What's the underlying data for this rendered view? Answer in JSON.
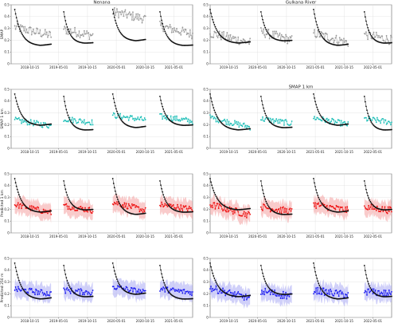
{
  "chart_data": [
    {
      "type": "scatter",
      "panel": "nenana-smap",
      "title": "Nenana",
      "ylabel": "SMAP",
      "ylim": [
        0,
        0.5
      ],
      "yticks": [
        "0",
        "0.1",
        "0.2",
        "0.3",
        "0.4",
        "0.5"
      ],
      "xticks": [
        "2018-10-15",
        "2019-05-01",
        "2019-10-15",
        "2020-05-01",
        "2020-10-15",
        "2021-05-01"
      ],
      "xlim": [
        0,
        100
      ],
      "model_color": "#9a9a9a",
      "band": false,
      "obs_segments": [
        {
          "x0": 2,
          "x1": 22
        },
        {
          "x0": 29,
          "x1": 45
        },
        {
          "x0": 56,
          "x1": 74
        },
        {
          "x0": 82,
          "x1": 100
        }
      ],
      "model_segments": [
        {
          "x0": 2,
          "x1": 22,
          "start": 0.31,
          "end": 0.24,
          "noise": 0.04
        },
        {
          "x0": 29,
          "x1": 45,
          "start": 0.29,
          "end": 0.24,
          "noise": 0.04
        },
        {
          "x0": 56,
          "x1": 74,
          "start": 0.44,
          "end": 0.38,
          "noise": 0.04
        },
        {
          "x0": 82,
          "x1": 100,
          "start": 0.32,
          "end": 0.25,
          "noise": 0.04
        }
      ]
    },
    {
      "type": "scatter",
      "panel": "gulkana-smap",
      "title": "Gulkana River",
      "ylabel": "",
      "ylim": [
        0,
        0.5
      ],
      "yticks": [
        "0",
        "0.1",
        "0.2",
        "0.3",
        "0.4",
        "0.5"
      ],
      "xticks": [
        "2019-10-15",
        "2020-05-01",
        "2020-10-15",
        "2021-05-01",
        "2021-10-15",
        "2022-05-01"
      ],
      "xlim": [
        0,
        100
      ],
      "model_color": "#9a9a9a",
      "band": false,
      "obs_segments": [
        {
          "x0": 0,
          "x1": 22
        },
        {
          "x0": 28,
          "x1": 45
        },
        {
          "x0": 57,
          "x1": 76
        },
        {
          "x0": 85,
          "x1": 100
        }
      ],
      "model_segments": [
        {
          "x0": 0,
          "x1": 22,
          "start": 0.26,
          "end": 0.18,
          "noise": 0.04
        },
        {
          "x0": 28,
          "x1": 45,
          "start": 0.27,
          "end": 0.2,
          "noise": 0.04
        },
        {
          "x0": 57,
          "x1": 76,
          "start": 0.26,
          "end": 0.18,
          "noise": 0.04
        },
        {
          "x0": 85,
          "x1": 100,
          "start": 0.25,
          "end": 0.2,
          "noise": 0.04
        }
      ]
    },
    {
      "type": "scatter",
      "panel": "nenana-smap1km",
      "title": "",
      "ylabel": "SMAP 1 km",
      "ylim": [
        0,
        0.5
      ],
      "yticks": [
        "0",
        "0.1",
        "0.2",
        "0.3",
        "0.4",
        "0.5"
      ],
      "xticks": [
        "2018-10-15",
        "2019-05-01",
        "2019-10-15",
        "2020-05-01",
        "2020-10-15",
        "2021-05-01"
      ],
      "xlim": [
        0,
        100
      ],
      "model_color": "#1fbfb8",
      "band": false,
      "obs_segments": [
        {
          "x0": 2,
          "x1": 22
        },
        {
          "x0": 29,
          "x1": 45
        },
        {
          "x0": 56,
          "x1": 74
        },
        {
          "x0": 82,
          "x1": 100
        }
      ],
      "model_segments": [
        {
          "x0": 2,
          "x1": 22,
          "start": 0.24,
          "end": 0.19,
          "noise": 0.025
        },
        {
          "x0": 29,
          "x1": 45,
          "start": 0.25,
          "end": 0.22,
          "noise": 0.025
        },
        {
          "x0": 56,
          "x1": 74,
          "start": 0.28,
          "end": 0.24,
          "noise": 0.025
        },
        {
          "x0": 82,
          "x1": 100,
          "start": 0.27,
          "end": 0.23,
          "noise": 0.025
        }
      ]
    },
    {
      "type": "scatter",
      "panel": "gulkana-smap1km",
      "title": "SMAP 1 km",
      "ylabel": "",
      "ylim": [
        0,
        0.5
      ],
      "yticks": [
        "0",
        "0.1",
        "0.2",
        "0.3",
        "0.4",
        "0.5"
      ],
      "xticks": [
        "2019-10-15",
        "2020-05-01",
        "2020-10-15",
        "2021-05-01",
        "2021-10-15",
        "2022-05-01"
      ],
      "xlim": [
        0,
        100
      ],
      "model_color": "#1fbfb8",
      "band": false,
      "obs_segments": [
        {
          "x0": 0,
          "x1": 22
        },
        {
          "x0": 28,
          "x1": 45
        },
        {
          "x0": 57,
          "x1": 76
        },
        {
          "x0": 85,
          "x1": 100
        }
      ],
      "model_segments": [
        {
          "x0": 0,
          "x1": 22,
          "start": 0.26,
          "end": 0.18,
          "noise": 0.025
        },
        {
          "x0": 28,
          "x1": 45,
          "start": 0.25,
          "end": 0.21,
          "noise": 0.025
        },
        {
          "x0": 57,
          "x1": 76,
          "start": 0.26,
          "end": 0.2,
          "noise": 0.025
        },
        {
          "x0": 85,
          "x1": 100,
          "start": 0.25,
          "end": 0.22,
          "noise": 0.025
        }
      ]
    },
    {
      "type": "scatter",
      "panel": "nenana-pred1km",
      "title": "",
      "ylabel": "Predicted 1 km",
      "ylim": [
        0,
        0.5
      ],
      "yticks": [
        "0",
        "0.1",
        "0.2",
        "0.3",
        "0.4",
        "0.5"
      ],
      "xticks": [
        "2018-10-15",
        "2019-05-01",
        "2019-10-15",
        "2020-05-01",
        "2020-10-15",
        "2021-05-01"
      ],
      "xlim": [
        0,
        100
      ],
      "model_color": "#ee1111",
      "band": true,
      "band_color": "#f4a0a0",
      "obs_segments": [
        {
          "x0": 2,
          "x1": 22
        },
        {
          "x0": 29,
          "x1": 45
        },
        {
          "x0": 56,
          "x1": 74
        },
        {
          "x0": 82,
          "x1": 100
        }
      ],
      "model_segments": [
        {
          "x0": 2,
          "x1": 22,
          "start": 0.24,
          "end": 0.17,
          "noise": 0.025
        },
        {
          "x0": 29,
          "x1": 45,
          "start": 0.23,
          "end": 0.19,
          "noise": 0.025
        },
        {
          "x0": 56,
          "x1": 74,
          "start": 0.26,
          "end": 0.19,
          "noise": 0.025
        },
        {
          "x0": 82,
          "x1": 100,
          "start": 0.24,
          "end": 0.2,
          "noise": 0.025
        }
      ]
    },
    {
      "type": "scatter",
      "panel": "gulkana-pred1km",
      "title": "",
      "ylabel": "",
      "ylim": [
        0,
        0.5
      ],
      "yticks": [
        "0",
        "0.1",
        "0.2",
        "0.3",
        "0.4",
        "0.5"
      ],
      "xticks": [
        "2019-10-15",
        "2020-05-01",
        "2020-10-15",
        "2021-05-01",
        "2021-10-15",
        "2022-05-01"
      ],
      "xlim": [
        0,
        100
      ],
      "model_color": "#ee1111",
      "band": true,
      "band_color": "#f4a0a0",
      "obs_segments": [
        {
          "x0": 0,
          "x1": 22
        },
        {
          "x0": 28,
          "x1": 45
        },
        {
          "x0": 57,
          "x1": 76
        },
        {
          "x0": 85,
          "x1": 100
        }
      ],
      "model_segments": [
        {
          "x0": 0,
          "x1": 22,
          "start": 0.24,
          "end": 0.15,
          "noise": 0.03
        },
        {
          "x0": 28,
          "x1": 45,
          "start": 0.22,
          "end": 0.18,
          "noise": 0.03
        },
        {
          "x0": 57,
          "x1": 76,
          "start": 0.24,
          "end": 0.19,
          "noise": 0.03
        },
        {
          "x0": 85,
          "x1": 100,
          "start": 0.22,
          "end": 0.19,
          "noise": 0.03
        }
      ]
    },
    {
      "type": "scatter",
      "panel": "nenana-pred250m",
      "title": "",
      "ylabel": "Predicted 250 m",
      "ylim": [
        0,
        0.5
      ],
      "yticks": [
        "0",
        "0.1",
        "0.2",
        "0.3",
        "0.4",
        "0.5"
      ],
      "xticks": [
        "2018-10-15",
        "2019-05-01",
        "2019-10-15",
        "2020-05-01",
        "2020-10-15",
        "2021-05-01"
      ],
      "xlim": [
        0,
        100
      ],
      "model_color": "#1a1af0",
      "band": true,
      "band_color": "#a9aaf4",
      "obs_segments": [
        {
          "x0": 2,
          "x1": 22
        },
        {
          "x0": 29,
          "x1": 45
        },
        {
          "x0": 56,
          "x1": 74
        },
        {
          "x0": 82,
          "x1": 100
        }
      ],
      "model_segments": [
        {
          "x0": 2,
          "x1": 22,
          "start": 0.24,
          "end": 0.2,
          "noise": 0.025
        },
        {
          "x0": 29,
          "x1": 45,
          "start": 0.23,
          "end": 0.21,
          "noise": 0.025
        },
        {
          "x0": 56,
          "x1": 74,
          "start": 0.26,
          "end": 0.21,
          "noise": 0.025
        },
        {
          "x0": 82,
          "x1": 100,
          "start": 0.24,
          "end": 0.21,
          "noise": 0.025
        }
      ]
    },
    {
      "type": "scatter",
      "panel": "gulkana-pred250m",
      "title": "",
      "ylabel": "",
      "ylim": [
        0,
        0.5
      ],
      "yticks": [
        "0",
        "0.1",
        "0.2",
        "0.3",
        "0.4",
        "0.5"
      ],
      "xticks": [
        "2019-10-15",
        "2020-05-01",
        "2020-10-15",
        "2021-05-01",
        "2021-10-15",
        "2022-05-01"
      ],
      "xlim": [
        0,
        100
      ],
      "model_color": "#1a1af0",
      "band": true,
      "band_color": "#a9aaf4",
      "obs_segments": [
        {
          "x0": 0,
          "x1": 22
        },
        {
          "x0": 28,
          "x1": 45
        },
        {
          "x0": 57,
          "x1": 76
        },
        {
          "x0": 85,
          "x1": 100
        }
      ],
      "model_segments": [
        {
          "x0": 0,
          "x1": 22,
          "start": 0.25,
          "end": 0.16,
          "noise": 0.03
        },
        {
          "x0": 28,
          "x1": 45,
          "start": 0.22,
          "end": 0.18,
          "noise": 0.035
        },
        {
          "x0": 57,
          "x1": 76,
          "start": 0.23,
          "end": 0.19,
          "noise": 0.03
        },
        {
          "x0": 85,
          "x1": 100,
          "start": 0.22,
          "end": 0.2,
          "noise": 0.03
        }
      ]
    }
  ],
  "observed_color": "#111111"
}
